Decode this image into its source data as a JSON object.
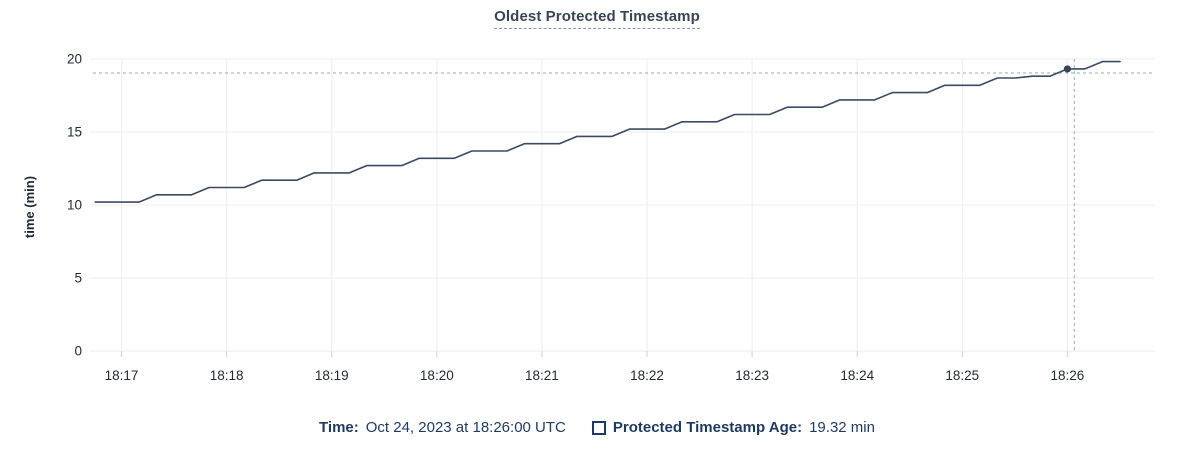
{
  "chart": {
    "title": "Oldest Protected Timestamp",
    "ylabel": "time (min)"
  },
  "legend": {
    "time_label": "Time:",
    "time_value": "Oct 24, 2023 at 18:26:00 UTC",
    "series_label": "Protected Timestamp Age:",
    "series_value": "19.32 min"
  },
  "colors": {
    "line": "#3c4a61",
    "marker": "#394455",
    "grid": "#f0f0f2",
    "tick": "#d8d8db",
    "axis_text": "#242a35",
    "title_text": "#394455",
    "legend_text": "#1e3a5f",
    "crosshair": "#a8bcc7",
    "background": "#ffffff"
  },
  "chart_data": {
    "type": "line",
    "title": "Oldest Protected Timestamp",
    "xlabel": "",
    "ylabel": "time (min)",
    "ylim": [
      0,
      20
    ],
    "y_ticks": [
      0,
      5,
      10,
      15,
      20
    ],
    "x_ticks": [
      "18:17",
      "18:18",
      "18:19",
      "18:20",
      "18:21",
      "18:22",
      "18:23",
      "18:24",
      "18:25",
      "18:26"
    ],
    "x_domain": [
      "18:16:42",
      "18:26:50"
    ],
    "grid": true,
    "legend_position": "bottom",
    "series": [
      {
        "name": "Protected Timestamp Age",
        "unit": "min",
        "points": [
          [
            "18:16:45",
            10.2
          ],
          [
            "18:16:50",
            10.2
          ],
          [
            "18:17:00",
            10.2
          ],
          [
            "18:17:10",
            10.2
          ],
          [
            "18:17:20",
            10.7
          ],
          [
            "18:17:30",
            10.7
          ],
          [
            "18:17:40",
            10.7
          ],
          [
            "18:17:50",
            11.2
          ],
          [
            "18:18:00",
            11.2
          ],
          [
            "18:18:10",
            11.2
          ],
          [
            "18:18:20",
            11.7
          ],
          [
            "18:18:30",
            11.7
          ],
          [
            "18:18:40",
            11.7
          ],
          [
            "18:18:50",
            12.2
          ],
          [
            "18:19:00",
            12.2
          ],
          [
            "18:19:10",
            12.2
          ],
          [
            "18:19:20",
            12.7
          ],
          [
            "18:19:30",
            12.7
          ],
          [
            "18:19:40",
            12.7
          ],
          [
            "18:19:50",
            13.2
          ],
          [
            "18:20:00",
            13.2
          ],
          [
            "18:20:10",
            13.2
          ],
          [
            "18:20:20",
            13.7
          ],
          [
            "18:20:30",
            13.7
          ],
          [
            "18:20:40",
            13.7
          ],
          [
            "18:20:50",
            14.2
          ],
          [
            "18:21:00",
            14.2
          ],
          [
            "18:21:10",
            14.2
          ],
          [
            "18:21:20",
            14.7
          ],
          [
            "18:21:30",
            14.7
          ],
          [
            "18:21:40",
            14.7
          ],
          [
            "18:21:50",
            15.2
          ],
          [
            "18:22:00",
            15.2
          ],
          [
            "18:22:10",
            15.2
          ],
          [
            "18:22:20",
            15.7
          ],
          [
            "18:22:30",
            15.7
          ],
          [
            "18:22:40",
            15.7
          ],
          [
            "18:22:50",
            16.2
          ],
          [
            "18:23:00",
            16.2
          ],
          [
            "18:23:10",
            16.2
          ],
          [
            "18:23:20",
            16.7
          ],
          [
            "18:23:30",
            16.7
          ],
          [
            "18:23:40",
            16.7
          ],
          [
            "18:23:50",
            17.2
          ],
          [
            "18:24:00",
            17.2
          ],
          [
            "18:24:10",
            17.2
          ],
          [
            "18:24:20",
            17.7
          ],
          [
            "18:24:30",
            17.7
          ],
          [
            "18:24:40",
            17.7
          ],
          [
            "18:24:50",
            18.2
          ],
          [
            "18:25:00",
            18.2
          ],
          [
            "18:25:10",
            18.2
          ],
          [
            "18:25:20",
            18.7
          ],
          [
            "18:25:30",
            18.7
          ],
          [
            "18:25:40",
            18.82
          ],
          [
            "18:25:50",
            18.82
          ],
          [
            "18:26:00",
            19.32
          ],
          [
            "18:26:10",
            19.32
          ],
          [
            "18:26:20",
            19.82
          ],
          [
            "18:26:30",
            19.82
          ]
        ]
      }
    ],
    "hover": {
      "snapped_time": "18:26:00",
      "snapped_value": 19.32,
      "crosshair_time": "18:26:04",
      "crosshair_value": 19.04
    }
  }
}
